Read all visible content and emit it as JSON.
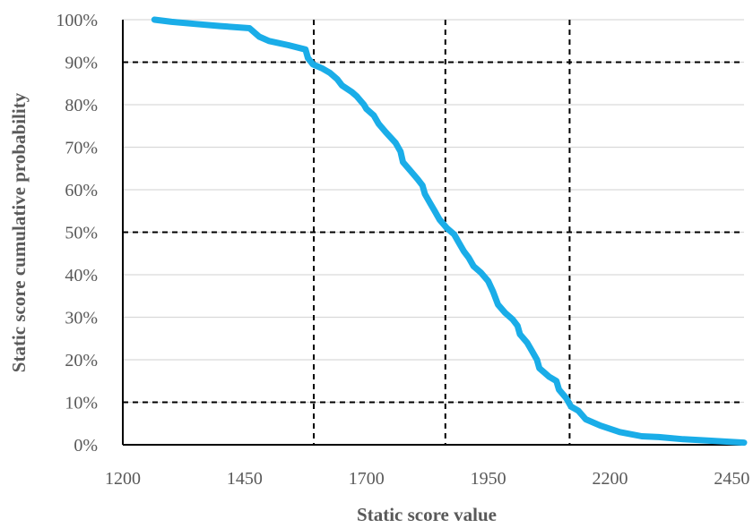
{
  "chart_data": {
    "type": "line",
    "title": "",
    "xlabel": "Static score value",
    "ylabel": "Static score cumulative probability",
    "xlim": [
      1200,
      2475
    ],
    "ylim": [
      0,
      100
    ],
    "x_ticks": [
      "1200",
      "1450",
      "1700",
      "1950",
      "2200",
      "2450"
    ],
    "y_ticks": [
      "0%",
      "10%",
      "20%",
      "30%",
      "40%",
      "50%",
      "60%",
      "70%",
      "80%",
      "90%",
      "100%"
    ],
    "grid": "horizontal",
    "legend": "none",
    "series": [
      {
        "color": "#1AADE8",
        "points": [
          [
            1265,
            100
          ],
          [
            1300,
            99.5
          ],
          [
            1350,
            99
          ],
          [
            1400,
            98.5
          ],
          [
            1460,
            98
          ],
          [
            1480,
            96
          ],
          [
            1500,
            95
          ],
          [
            1540,
            94
          ],
          [
            1575,
            93
          ],
          [
            1580,
            91
          ],
          [
            1590,
            89.5
          ],
          [
            1610,
            88.5
          ],
          [
            1625,
            87.5
          ],
          [
            1640,
            86
          ],
          [
            1650,
            84.5
          ],
          [
            1670,
            83
          ],
          [
            1680,
            82
          ],
          [
            1695,
            80
          ],
          [
            1700,
            79
          ],
          [
            1715,
            77.5
          ],
          [
            1725,
            75.5
          ],
          [
            1740,
            73.5
          ],
          [
            1760,
            71
          ],
          [
            1770,
            69
          ],
          [
            1775,
            66.5
          ],
          [
            1790,
            64.5
          ],
          [
            1805,
            62.5
          ],
          [
            1815,
            61
          ],
          [
            1820,
            59
          ],
          [
            1830,
            57
          ],
          [
            1840,
            55
          ],
          [
            1850,
            53
          ],
          [
            1865,
            51
          ],
          [
            1880,
            49.5
          ],
          [
            1890,
            47.5
          ],
          [
            1900,
            45.5
          ],
          [
            1910,
            44
          ],
          [
            1920,
            42
          ],
          [
            1935,
            40.5
          ],
          [
            1950,
            38.5
          ],
          [
            1960,
            36
          ],
          [
            1970,
            33
          ],
          [
            1985,
            31
          ],
          [
            2000,
            29.5
          ],
          [
            2010,
            28
          ],
          [
            2015,
            26
          ],
          [
            2030,
            24
          ],
          [
            2040,
            22
          ],
          [
            2050,
            20
          ],
          [
            2055,
            18
          ],
          [
            2065,
            17
          ],
          [
            2075,
            16
          ],
          [
            2090,
            15
          ],
          [
            2095,
            13
          ],
          [
            2110,
            11
          ],
          [
            2120,
            9
          ],
          [
            2135,
            8
          ],
          [
            2150,
            6
          ],
          [
            2180,
            4.5
          ],
          [
            2220,
            3
          ],
          [
            2265,
            2
          ],
          [
            2300,
            1.8
          ],
          [
            2350,
            1.3
          ],
          [
            2400,
            1
          ],
          [
            2475,
            0.5
          ]
        ]
      }
    ],
    "reference_lines": {
      "x": [
        1592,
        1862,
        2117
      ],
      "y": [
        10,
        50,
        90
      ],
      "style": "dashed",
      "color": "#000000"
    }
  }
}
